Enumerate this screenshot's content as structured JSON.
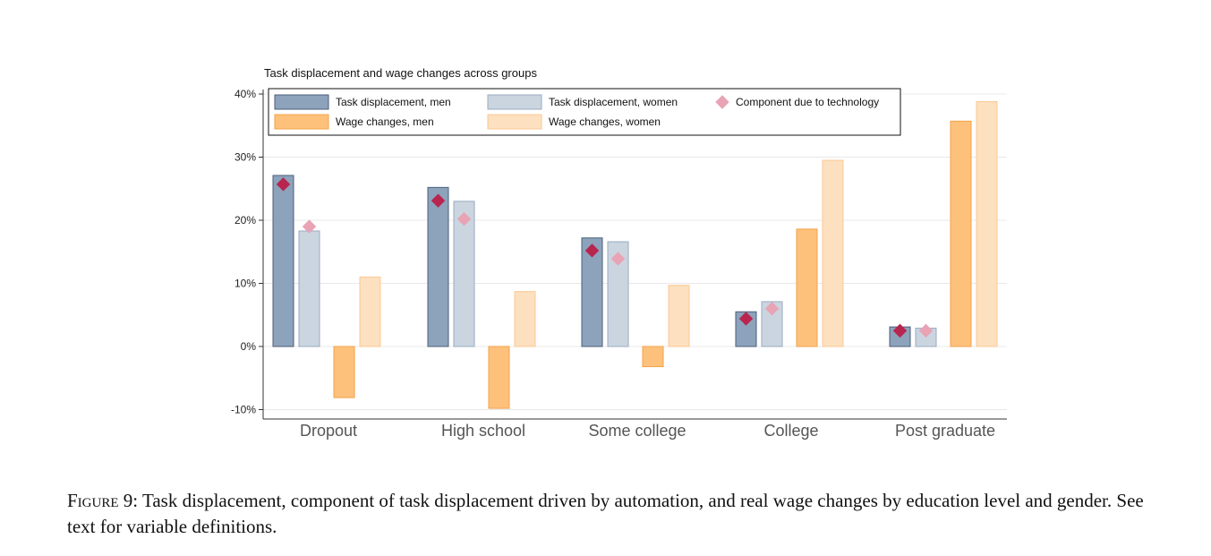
{
  "caption": {
    "label": "Figure 9:",
    "text": "Task displacement, component of task displacement driven by automation, and real wage changes by education level and gender. See text for variable definitions."
  },
  "chart_data": {
    "type": "bar",
    "title": "Task displacement and wage changes across groups",
    "xlabel": "",
    "ylabel": "",
    "categories": [
      "Dropout",
      "High school",
      "Some college",
      "College",
      "Post graduate"
    ],
    "y_ticks": [
      "-10%",
      "0%",
      "10%",
      "20%",
      "30%",
      "40%"
    ],
    "ylim": [
      -11.5,
      40
    ],
    "grid": true,
    "legend_position": "top-left",
    "series": [
      {
        "name": "Task displacement, men",
        "kind": "bar",
        "color": "#8da2bb",
        "stroke": "#4c5f7a",
        "values": [
          27.1,
          25.2,
          17.2,
          5.5,
          3.1
        ]
      },
      {
        "name": "Task displacement, women",
        "kind": "bar",
        "color": "#cad5e0",
        "stroke": "#98abbf",
        "values": [
          18.3,
          23.0,
          16.6,
          7.1,
          2.9
        ]
      },
      {
        "name": "Wage changes, men",
        "kind": "bar",
        "color": "#fdc17c",
        "stroke": "#f4a24a",
        "values": [
          -8.1,
          -9.8,
          -3.2,
          18.6,
          35.7
        ]
      },
      {
        "name": "Wage changes, women",
        "kind": "bar",
        "color": "#fde0bf",
        "stroke": "#fbc995",
        "values": [
          11.0,
          8.7,
          9.7,
          29.5,
          38.8
        ]
      },
      {
        "name": "Component due to technology",
        "kind": "marker",
        "color_men": "#b8254f",
        "color_women": "#e8a3b5",
        "values_men": [
          25.7,
          23.1,
          15.2,
          4.4,
          2.5
        ],
        "values_women": [
          19.0,
          20.2,
          13.9,
          6.0,
          2.5
        ]
      }
    ]
  }
}
